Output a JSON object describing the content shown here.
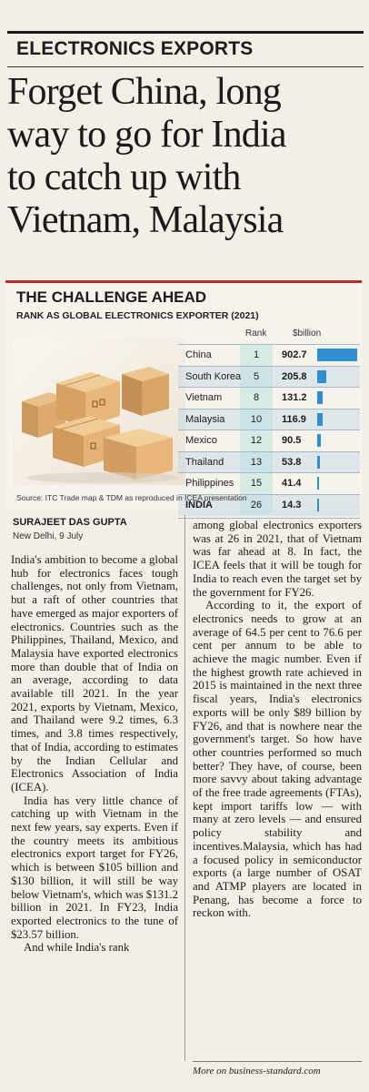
{
  "kicker": "ELECTRONICS EXPORTS",
  "headline": {
    "lines": [
      "Forget China, long",
      "way to go for India",
      "to catch up with",
      "Vietnam, Malaysia"
    ]
  },
  "chart": {
    "title": "THE CHALLENGE AHEAD",
    "subtitle": "RANK AS GLOBAL ELECTRONICS EXPORTER  (2021)",
    "col_rank": "Rank",
    "col_value": "$billion",
    "source": "Source: ITC Trade map & TDM as reproduced in ICEA presentation",
    "bar_color": "#2f8fd1",
    "rank_bg": "#d7ebe6"
  },
  "chart_data": {
    "type": "table",
    "columns": [
      "Country",
      "Rank",
      "$billion"
    ],
    "rows": [
      {
        "country": "China",
        "rank": "1",
        "value": "902.7"
      },
      {
        "country": "South Korea",
        "rank": "5",
        "value": "205.8"
      },
      {
        "country": "Vietnam",
        "rank": "8",
        "value": "131.2"
      },
      {
        "country": "Malaysia",
        "rank": "10",
        "value": "116.9"
      },
      {
        "country": "Mexico",
        "rank": "12",
        "value": "90.5"
      },
      {
        "country": "Thailand",
        "rank": "13",
        "value": "53.8"
      },
      {
        "country": "Philippines",
        "rank": "15",
        "value": "41.4"
      },
      {
        "country": "INDIA",
        "rank": "26",
        "value": "14.3"
      }
    ]
  },
  "byline": {
    "author": "SURAJEET DAS GUPTA",
    "dateline": "New Delhi, 9 July"
  },
  "article": {
    "left": [
      "India's ambition to become a global hub for electronics faces tough challenges, not only from Vietnam, but a raft of other countries that have emerged as major exporters of electronics. Countries such as the Philippines, Thailand, Mexico, and Malaysia have exported electronics more than double that of India on an average, according to data available till 2021. In the year 2021, exports by Vietnam, Mexico, and Thailand were 9.2 times, 6.3 times, and 3.8 times respectively, that of India, according to estimates by the Indian Cellular and Electronics Association of India (ICEA).",
      "India has very little chance of catching up with Vietnam in the next few years, say experts. Even if the country meets its ambitious electronics export target for FY26, which is between $105 billion and $130 billion, it will still be way below Vietnam's, which was $131.2 billion in 2021. In FY23, India exported electronics to the tune of $23.57 billion.",
      "And while India's rank"
    ],
    "right": [
      "among global electronics exporters was at 26 in 2021, that of Vietnam was far ahead at 8. In fact, the ICEA feels that it will be tough for India to reach even the target set by the government for FY26.",
      "According to it, the export of electronics needs to grow at an average of 64.5 per cent to 76.6 per cent per annum to be able to achieve the magic number. Even if the highest growth rate achieved in 2015 is maintained in the next three fiscal years, India's electronics exports will be only $89 billion by FY26, and that is nowhere near the government's target. So how have other countries performed so much better? They have, of course, been more savvy about taking advantage of the free trade agreements (FTAs), kept import tariffs low — with many at zero levels — and ensured policy stability and incentives.Malaysia, which has had a focused policy in semiconductor exports (a large number of OSAT and ATMP players are located in Penang, has become a force to reckon with."
    ]
  },
  "footer": {
    "more": "More on business-standard.com"
  }
}
